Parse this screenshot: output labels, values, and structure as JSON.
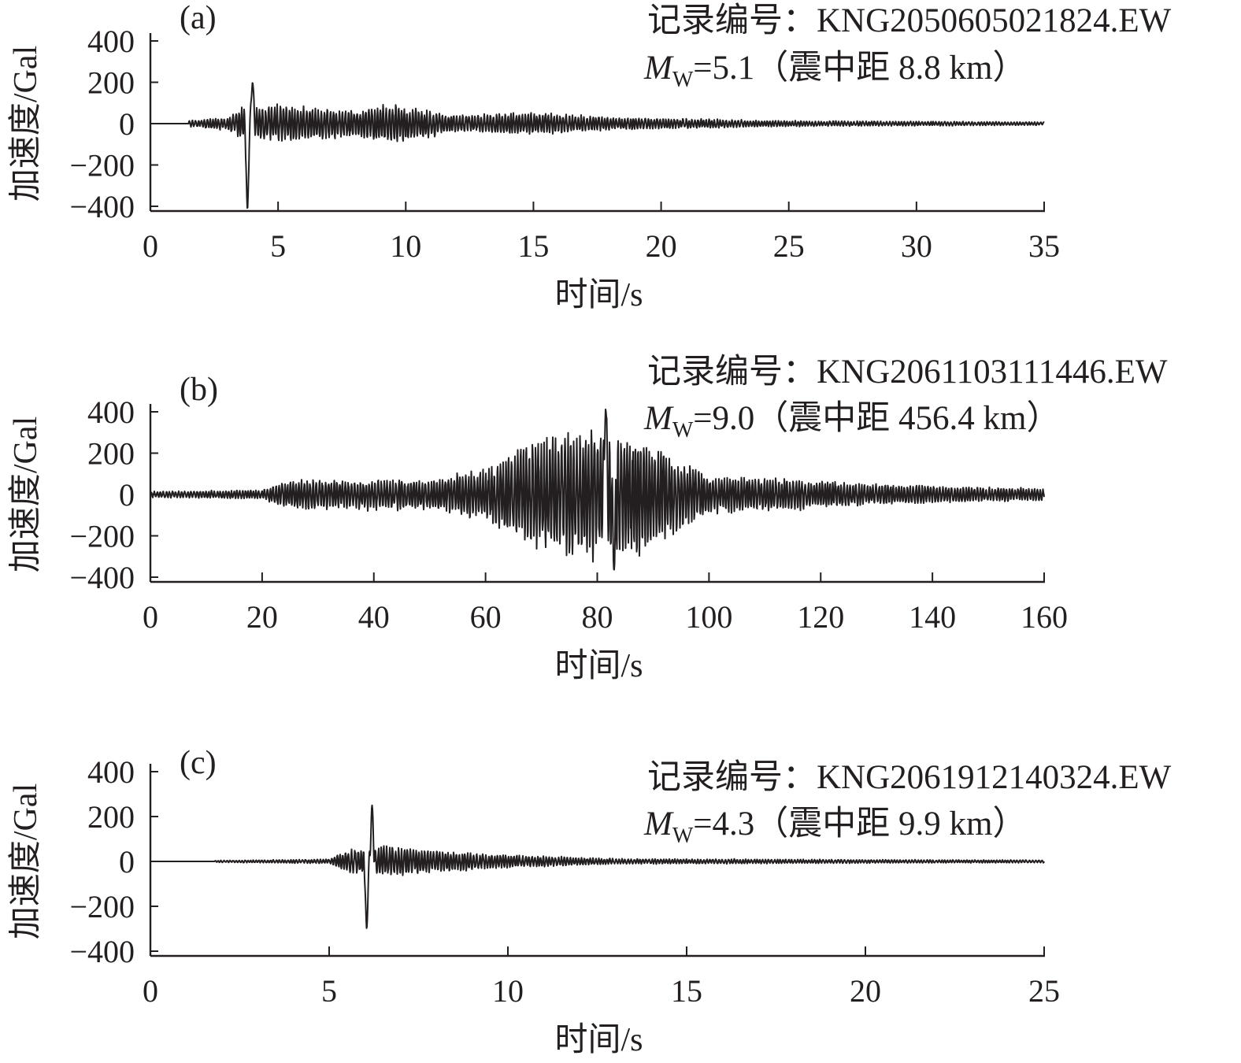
{
  "chart_data": [
    {
      "type": "line",
      "panel_label": "(a)",
      "record_label": "记录编号：KNG2050605021824.EW",
      "mw_symbol": "M",
      "mw_sub": "W",
      "mw_text": "=5.1（震中距 8.8 km）",
      "xlabel": "时间/s",
      "ylabel": "加速度/Gal",
      "xlim": [
        0,
        35
      ],
      "ylim": [
        -400,
        400
      ],
      "xticks": [
        0,
        5,
        10,
        15,
        20,
        25,
        30,
        35
      ],
      "yticks": [
        400,
        200,
        0,
        -200,
        -400
      ],
      "ytick_labels": [
        "400",
        "200",
        "0",
        "−200",
        "−400"
      ],
      "grid": false,
      "line_color": "#231f20",
      "trace": {
        "quiet_until": 1.5,
        "peak_pos": [
          4.0,
          200
        ],
        "peak_neg": [
          3.8,
          -415
        ],
        "coda_envelope": [
          [
            1.5,
            15
          ],
          [
            3.0,
            30
          ],
          [
            3.6,
            80
          ],
          [
            5.0,
            90
          ],
          [
            8.0,
            65
          ],
          [
            9.2,
            95
          ],
          [
            12.0,
            40
          ],
          [
            15.0,
            55
          ],
          [
            18.0,
            30
          ],
          [
            25.0,
            14
          ],
          [
            35.0,
            8
          ]
        ]
      }
    },
    {
      "type": "line",
      "panel_label": "(b)",
      "record_label": "记录编号：KNG2061103111446.EW",
      "mw_symbol": "M",
      "mw_sub": "W",
      "mw_text": "=9.0（震中距 456.4 km）",
      "xlabel": "时间/s",
      "ylabel": "加速度/Gal",
      "xlim": [
        0,
        160
      ],
      "ylim": [
        -400,
        400
      ],
      "xticks": [
        0,
        20,
        40,
        60,
        80,
        100,
        120,
        140,
        160
      ],
      "yticks": [
        400,
        200,
        0,
        -200,
        -400
      ],
      "ytick_labels": [
        "400",
        "200",
        "0",
        "−200",
        "−400"
      ],
      "grid": false,
      "line_color": "#231f20",
      "trace": {
        "quiet_until": 0,
        "peak_pos": [
          81.5,
          415
        ],
        "peak_neg": [
          83.0,
          -365
        ],
        "coda_envelope": [
          [
            0,
            15
          ],
          [
            20,
            22
          ],
          [
            25,
            70
          ],
          [
            50,
            75
          ],
          [
            60,
            120
          ],
          [
            65,
            220
          ],
          [
            72,
            300
          ],
          [
            80,
            330
          ],
          [
            88,
            300
          ],
          [
            93,
            200
          ],
          [
            100,
            90
          ],
          [
            110,
            80
          ],
          [
            130,
            50
          ],
          [
            145,
            40
          ],
          [
            160,
            30
          ]
        ]
      }
    },
    {
      "type": "line",
      "panel_label": "(c)",
      "record_label": "记录编号：KNG2061912140324.EW",
      "mw_symbol": "M",
      "mw_sub": "W",
      "mw_text": "=4.3（震中距 9.9 km）",
      "xlabel": "时间/s",
      "ylabel": "加速度/Gal",
      "xlim": [
        0,
        25
      ],
      "ylim": [
        -400,
        400
      ],
      "xticks": [
        0,
        5,
        10,
        15,
        20,
        25
      ],
      "yticks": [
        400,
        200,
        0,
        -200,
        -400
      ],
      "ytick_labels": [
        "400",
        "200",
        "0",
        "−200",
        "−400"
      ],
      "grid": false,
      "line_color": "#231f20",
      "trace": {
        "quiet_until": 1.8,
        "peak_pos": [
          6.2,
          250
        ],
        "peak_neg": [
          6.05,
          -300
        ],
        "coda_envelope": [
          [
            1.8,
            4
          ],
          [
            5.0,
            10
          ],
          [
            5.5,
            50
          ],
          [
            6.6,
            70
          ],
          [
            8.0,
            50
          ],
          [
            10.0,
            28
          ],
          [
            13.0,
            12
          ],
          [
            20.0,
            8
          ],
          [
            25.0,
            6
          ]
        ]
      }
    }
  ]
}
